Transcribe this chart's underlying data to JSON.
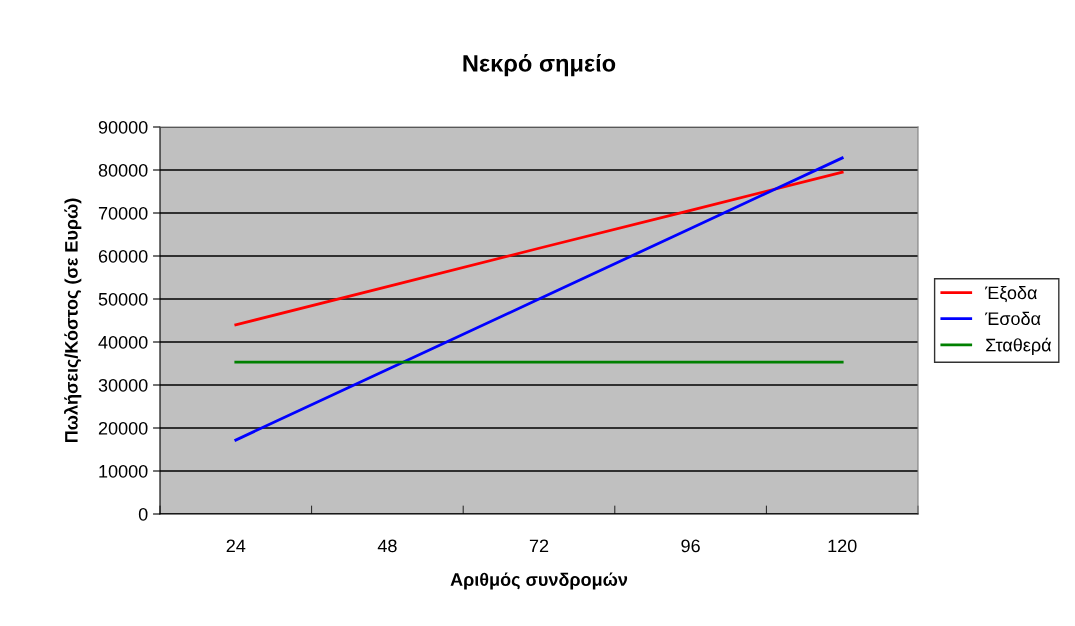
{
  "chart_data": {
    "type": "line",
    "title": "Νεκρό σημείο",
    "xlabel": "Αριθμός συνδρομών",
    "ylabel": "Πωλήσεις/Κόστος (σε Ευρώ)",
    "categories": [
      "24",
      "48",
      "72",
      "96",
      "120"
    ],
    "series": [
      {
        "name": "Έξοδα",
        "color": "#ff0000",
        "values": [
          44000,
          52900,
          61800,
          70600,
          79500
        ]
      },
      {
        "name": "Έσοδα",
        "color": "#0000ff",
        "values": [
          17200,
          33600,
          50000,
          66400,
          82800
        ]
      },
      {
        "name": "Σταθερά",
        "color": "#008000",
        "values": [
          35300,
          35300,
          35300,
          35300,
          35300
        ]
      }
    ],
    "ylim": [
      0,
      90000
    ],
    "yticks": [
      0,
      10000,
      20000,
      30000,
      40000,
      50000,
      60000,
      70000,
      80000,
      90000
    ],
    "grid": "y",
    "legend": "right",
    "marker": "none",
    "line_style": "solid"
  }
}
